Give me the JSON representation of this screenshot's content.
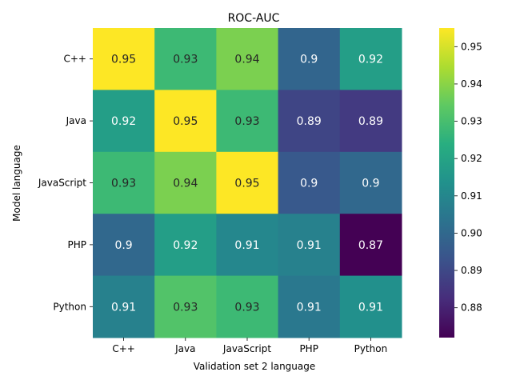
{
  "chart_data": {
    "type": "heatmap",
    "title": "ROC-AUC",
    "xlabel": "Validation set 2 language",
    "ylabel": "Model language",
    "x_categories": [
      "C++",
      "Java",
      "JavaScript",
      "PHP",
      "Python"
    ],
    "y_categories": [
      "C++",
      "Java",
      "JavaScript",
      "PHP",
      "Python"
    ],
    "values": [
      [
        0.955,
        0.928,
        0.938,
        0.899,
        0.918
      ],
      [
        0.918,
        0.955,
        0.928,
        0.889,
        0.886
      ],
      [
        0.928,
        0.938,
        0.955,
        0.895,
        0.9
      ],
      [
        0.9,
        0.918,
        0.91,
        0.908,
        0.872
      ],
      [
        0.908,
        0.932,
        0.928,
        0.905,
        0.913
      ]
    ],
    "labels": [
      [
        "0.95",
        "0.93",
        "0.94",
        "0.9",
        "0.92"
      ],
      [
        "0.92",
        "0.95",
        "0.93",
        "0.89",
        "0.89"
      ],
      [
        "0.93",
        "0.94",
        "0.95",
        "0.9",
        "0.9"
      ],
      [
        "0.9",
        "0.92",
        "0.91",
        "0.91",
        "0.87"
      ],
      [
        "0.91",
        "0.93",
        "0.93",
        "0.91",
        "0.91"
      ]
    ],
    "colormap": "viridis",
    "vmin": 0.872,
    "vmax": 0.955,
    "colorbar_ticks": [
      0.88,
      0.89,
      0.9,
      0.91,
      0.92,
      0.93,
      0.94,
      0.95
    ],
    "colorbar_tick_labels": [
      "0.88",
      "0.89",
      "0.90",
      "0.91",
      "0.92",
      "0.93",
      "0.94",
      "0.95"
    ],
    "label_color_dark": "#262626",
    "label_color_light": "#ffffff"
  }
}
